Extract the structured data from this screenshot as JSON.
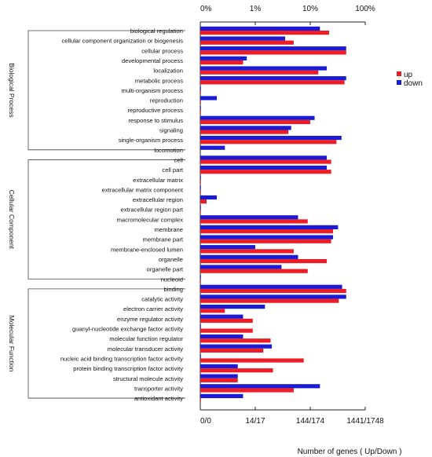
{
  "chart_data": {
    "type": "bar",
    "orientation": "horizontal",
    "scale": "log",
    "top_axis": {
      "ticks": [
        "0%",
        "1%",
        "10%",
        "100%"
      ]
    },
    "bottom_axis": {
      "ticks": [
        "0/0",
        "14/17",
        "144/174",
        "1441/1748"
      ]
    },
    "xlabel": "Number of genes ( Up/Down )",
    "colors": {
      "up": "#ee1c25",
      "down": "#1b1bd6"
    },
    "series": [
      {
        "name": "up",
        "color": "#ee1c25"
      },
      {
        "name": "down",
        "color": "#1b1bd6"
      }
    ],
    "group_brackets": [
      "Biological Process",
      "Cellular Component",
      "Molecular Function"
    ],
    "rows": [
      {
        "term": "biological regulation",
        "group": 0,
        "up": 22,
        "down": 15
      },
      {
        "term": "cellular component organization or biogenesis",
        "group": 0,
        "up": 5,
        "down": 3.5
      },
      {
        "term": "cellular process",
        "group": 0,
        "up": 45,
        "down": 45
      },
      {
        "term": "developmental process",
        "group": 0,
        "up": 0.6,
        "down": 0.7
      },
      {
        "term": "localization",
        "group": 0,
        "up": 14,
        "down": 20
      },
      {
        "term": "metabolic process",
        "group": 0,
        "up": 42,
        "down": 45
      },
      {
        "term": "multi-organism process",
        "group": 0,
        "up": 0.06,
        "down": 0.06
      },
      {
        "term": "reproduction",
        "group": 0,
        "up": 0.06,
        "down": 0.2
      },
      {
        "term": "reproductive process",
        "group": 0,
        "up": 0.06,
        "down": 0.06
      },
      {
        "term": "response to stimulus",
        "group": 0,
        "up": 10,
        "down": 12
      },
      {
        "term": "signaling",
        "group": 0,
        "up": 4,
        "down": 4.5
      },
      {
        "term": "single-organism process",
        "group": 0,
        "up": 30,
        "down": 37
      },
      {
        "term": "locomotion",
        "group": 0,
        "up": null,
        "down": 0.28
      },
      {
        "term": "cell",
        "group": 1,
        "up": 24,
        "down": 20
      },
      {
        "term": "cell part",
        "group": 1,
        "up": 24,
        "down": 20
      },
      {
        "term": "extracellular matrix",
        "group": 1,
        "up": 0.06,
        "down": 0.06
      },
      {
        "term": "extracellular matrix component",
        "group": 1,
        "up": 0.06,
        "down": 0.06
      },
      {
        "term": "extracellular region",
        "group": 1,
        "up": 0.13,
        "down": 0.2
      },
      {
        "term": "extracellular region part",
        "group": 1,
        "up": 0.06,
        "down": 0.06
      },
      {
        "term": "macromolecular complex",
        "group": 1,
        "up": 9,
        "down": 6
      },
      {
        "term": "membrane",
        "group": 1,
        "up": 26,
        "down": 32
      },
      {
        "term": "membrane part",
        "group": 1,
        "up": 24,
        "down": 26
      },
      {
        "term": "membrane-enclosed lumen",
        "group": 1,
        "up": 5,
        "down": 1
      },
      {
        "term": "organelle",
        "group": 1,
        "up": 20,
        "down": 6
      },
      {
        "term": "organelle part",
        "group": 1,
        "up": 9,
        "down": 3
      },
      {
        "term": "nucleoid",
        "group": 1,
        "up": 0.06,
        "down": 0.06
      },
      {
        "term": "binding",
        "group": 2,
        "up": 45,
        "down": 38
      },
      {
        "term": "catalytic activity",
        "group": 2,
        "up": 33,
        "down": 45
      },
      {
        "term": "electron carrier activity",
        "group": 2,
        "up": 0.28,
        "down": 1.5
      },
      {
        "term": "enzyme regulator activity",
        "group": 2,
        "up": 0.9,
        "down": 0.6
      },
      {
        "term": "guanyl-nucleotide exchange factor activity",
        "group": 2,
        "up": 0.9,
        "down": 0.06
      },
      {
        "term": "molecular function regulator",
        "group": 2,
        "up": 1.9,
        "down": 0.6
      },
      {
        "term": "molecular transducer activity",
        "group": 2,
        "up": 1.4,
        "down": 2
      },
      {
        "term": "nucleic acid binding transcription factor activity",
        "group": 2,
        "up": 7.6,
        "down": 0.1
      },
      {
        "term": "protein binding transcription factor activity",
        "group": 2,
        "up": 2.1,
        "down": 0.48
      },
      {
        "term": "structural molecule activity",
        "group": 2,
        "up": 0.48,
        "down": 0.48
      },
      {
        "term": "transporter activity",
        "group": 2,
        "up": 5,
        "down": 15
      },
      {
        "term": "antioxidant activity",
        "group": 2,
        "up": 0.06,
        "down": 0.6
      }
    ]
  }
}
